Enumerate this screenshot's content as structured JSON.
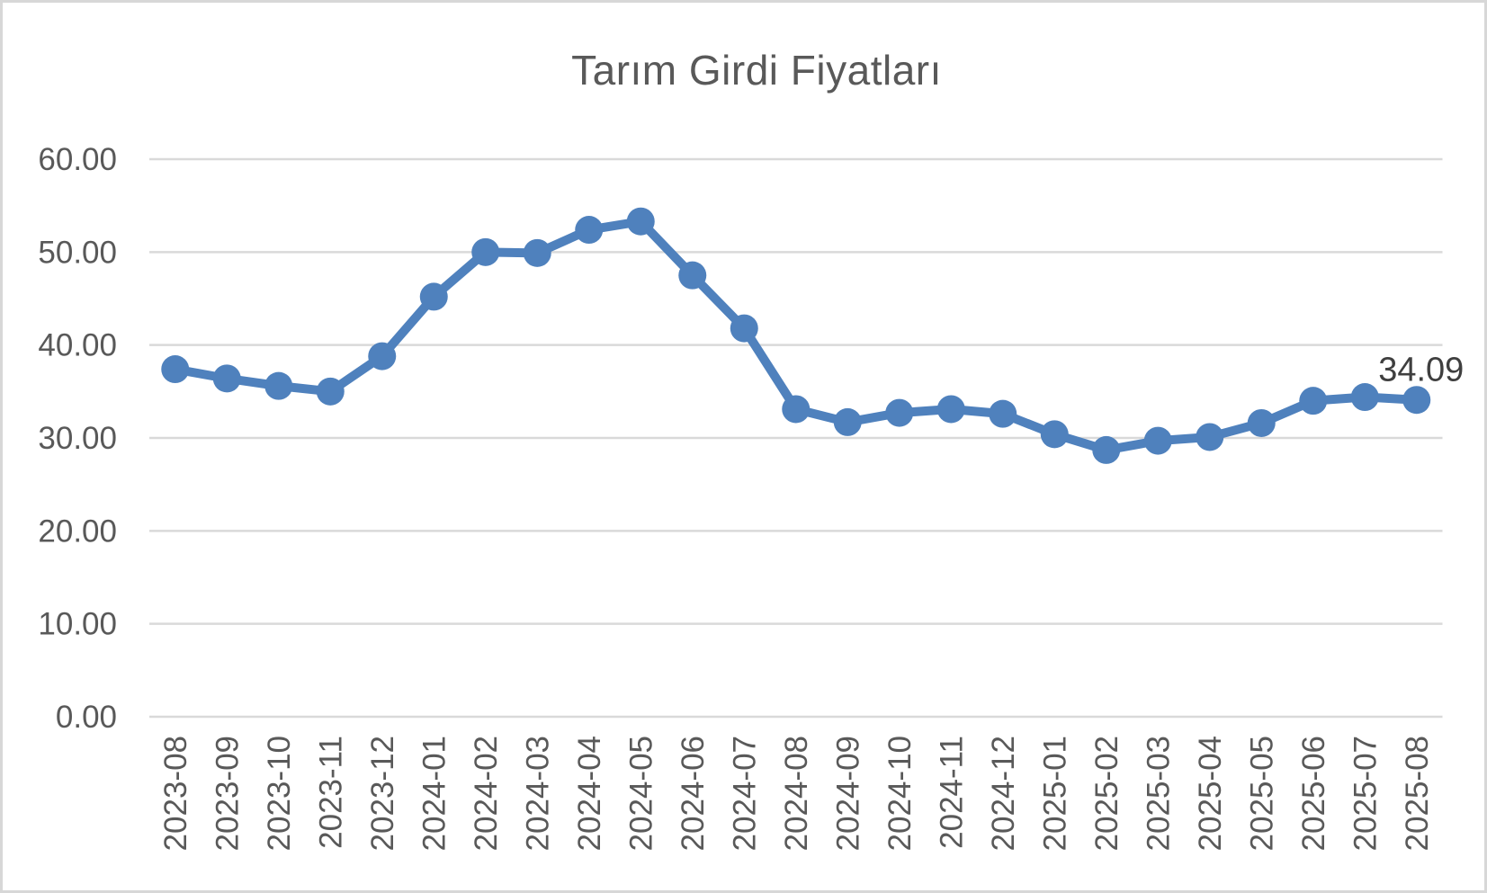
{
  "chart_data": {
    "type": "line",
    "title": "Tarım Girdi Fiyatları",
    "categories": [
      "2023-08",
      "2023-09",
      "2023-10",
      "2023-11",
      "2023-12",
      "2024-01",
      "2024-02",
      "2024-03",
      "2024-04",
      "2024-05",
      "2024-06",
      "2024-07",
      "2024-08",
      "2024-09",
      "2024-10",
      "2024-11",
      "2024-12",
      "2025-01",
      "2025-02",
      "2025-03",
      "2025-04",
      "2025-05",
      "2025-06",
      "2025-07",
      "2025-08"
    ],
    "series": [
      {
        "name": "Tarım Girdi Fiyatları",
        "values": [
          37.4,
          36.4,
          35.6,
          35.0,
          38.8,
          45.2,
          50.0,
          49.9,
          52.4,
          53.3,
          47.5,
          41.8,
          33.1,
          31.7,
          32.7,
          33.1,
          32.6,
          30.4,
          28.7,
          29.7,
          30.1,
          31.6,
          34.0,
          34.4,
          34.09
        ]
      }
    ],
    "last_point_label": "34.09",
    "xlabel": "",
    "ylabel": "",
    "ylim": [
      0,
      60
    ],
    "ytick_step": 10,
    "ytick_labels": [
      "0.00",
      "10.00",
      "20.00",
      "30.00",
      "40.00",
      "50.00",
      "60.00"
    ],
    "grid": true,
    "legend_position": "none",
    "x_tick_rotation_deg": -90,
    "colors": {
      "line": "#4f81bd",
      "marker": "#4f81bd",
      "gridline": "#d9d9d9",
      "axis_line": "#d9d9d9",
      "axis_text": "#595959",
      "title_text": "#595959",
      "data_label_text": "#3f3f3f",
      "background": "#ffffff",
      "frame_border": "#d7d7d7"
    }
  }
}
